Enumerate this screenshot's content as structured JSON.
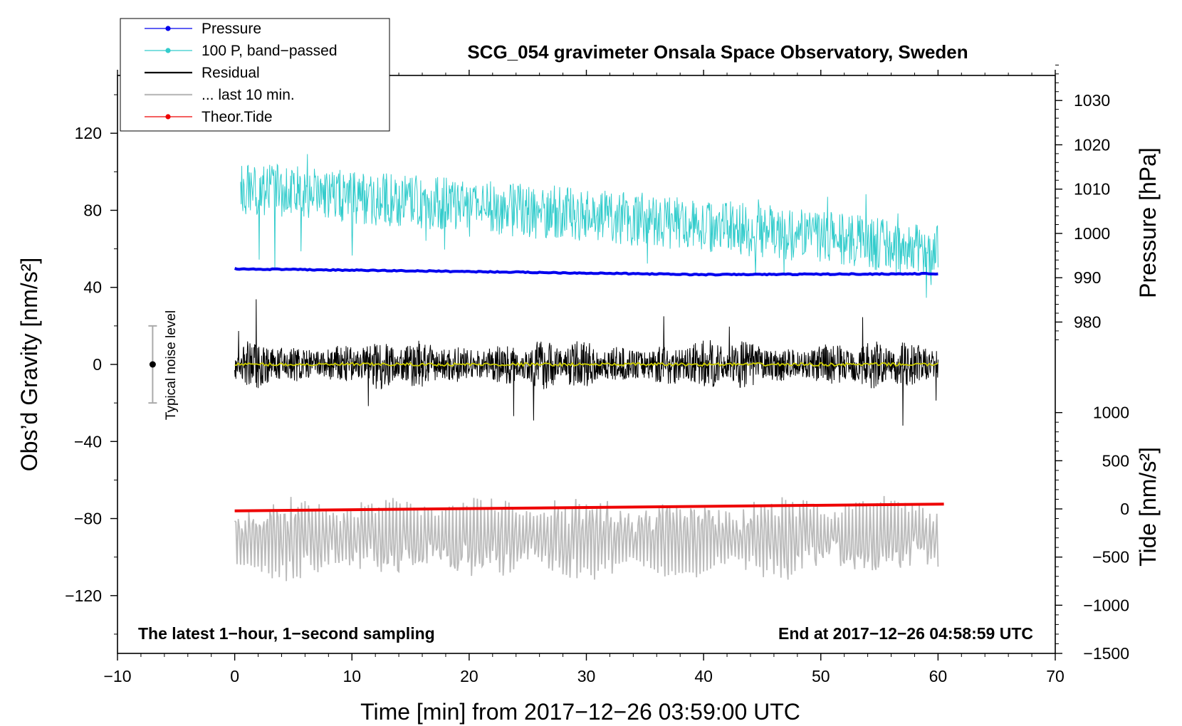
{
  "chart_data": {
    "type": "line",
    "title": "SCG_054 gravimeter Onsala Space Observatory, Sweden",
    "xlabel": "Time [min] from 2017−12−26 03:59:00 UTC",
    "ylabel": "Obs’d Gravity [nm/s²]",
    "ylabel_pressure": "Pressure [hPa]",
    "ylabel_tide": "Tide [nm/s²]",
    "xlim": [
      -10,
      70
    ],
    "ylim": [
      -150,
      150
    ],
    "x_ticks": [
      -10,
      0,
      10,
      20,
      30,
      40,
      50,
      60,
      70
    ],
    "x_tick_labels": [
      "−10",
      "0",
      "10",
      "20",
      "30",
      "40",
      "50",
      "60",
      "70"
    ],
    "y_ticks": [
      -120,
      -80,
      -40,
      0,
      40,
      80,
      120
    ],
    "y_tick_labels": [
      "−120",
      "−80",
      "−40",
      "0",
      "40",
      "80",
      "120"
    ],
    "pressure_axis": {
      "ticks": [
        980,
        990,
        1000,
        1010,
        1020,
        1030
      ],
      "tick_labels": [
        "980",
        "990",
        "1000",
        "1010",
        "1020",
        "1030"
      ],
      "gravity_at_980": 22,
      "gravity_per_hpa": 2.3
    },
    "tide_axis": {
      "ticks": [
        -1500,
        -1000,
        -500,
        0,
        500,
        1000
      ],
      "tick_labels": [
        "−1500",
        "−1000",
        "−500",
        "0",
        "500",
        "1000"
      ],
      "gravity_at_0": -75,
      "gravity_per_unit": 0.05
    },
    "legend": [
      {
        "label": "Pressure",
        "color": "#0000ee",
        "marker": true
      },
      {
        "label": "100 P, band−passed",
        "color": "#33cccc",
        "marker": true
      },
      {
        "label": "Residual",
        "color": "#000000",
        "marker": false
      },
      {
        "label": "... last 10 min.",
        "color": "#bbbbbb",
        "marker": false
      },
      {
        "label": "Theor.Tide",
        "color": "#ee0000",
        "marker": true
      }
    ],
    "annotations": {
      "left_note": "The latest 1−hour, 1−second sampling",
      "right_note": "End at 2017−12−26 04:58:59 UTC",
      "noise_label": "Typical noise level"
    },
    "noise_level": {
      "x": -7,
      "center": 0,
      "halfwidth": 20
    },
    "series": [
      {
        "name": "Pressure",
        "unit": "hPa",
        "x": [
          0,
          20,
          40,
          60
        ],
        "values": [
          992.0,
          991.4,
          990.7,
          990.9
        ],
        "color": "#0000ee"
      },
      {
        "name": "100 P, band−passed",
        "unit": "nm/s²",
        "x": [
          0,
          10,
          20,
          30,
          40,
          50,
          60
        ],
        "values": [
          92,
          87,
          82,
          78,
          72,
          66,
          58
        ],
        "amplitude": 14,
        "color": "#33cccc"
      },
      {
        "name": "Residual",
        "unit": "nm/s²",
        "x": [
          0,
          10,
          20,
          30,
          40,
          50,
          60
        ],
        "values": [
          0,
          0,
          0,
          0,
          0,
          0,
          0
        ],
        "amplitude": 12,
        "color": "#000000"
      },
      {
        "name": "Residual smoothed",
        "unit": "nm/s²",
        "x": [
          0,
          60
        ],
        "values": [
          0,
          0
        ],
        "color": "#cccc00"
      },
      {
        "name": "... last 10 min.",
        "unit": "nm/s²",
        "x": [
          0,
          60
        ],
        "values": [
          -90,
          -90
        ],
        "amplitude": 18,
        "color": "#bbbbbb"
      },
      {
        "name": "Theor.Tide",
        "unit": "nm/s²",
        "x": [
          0,
          60.5
        ],
        "values": [
          -20,
          50
        ],
        "color": "#ee0000"
      }
    ]
  }
}
